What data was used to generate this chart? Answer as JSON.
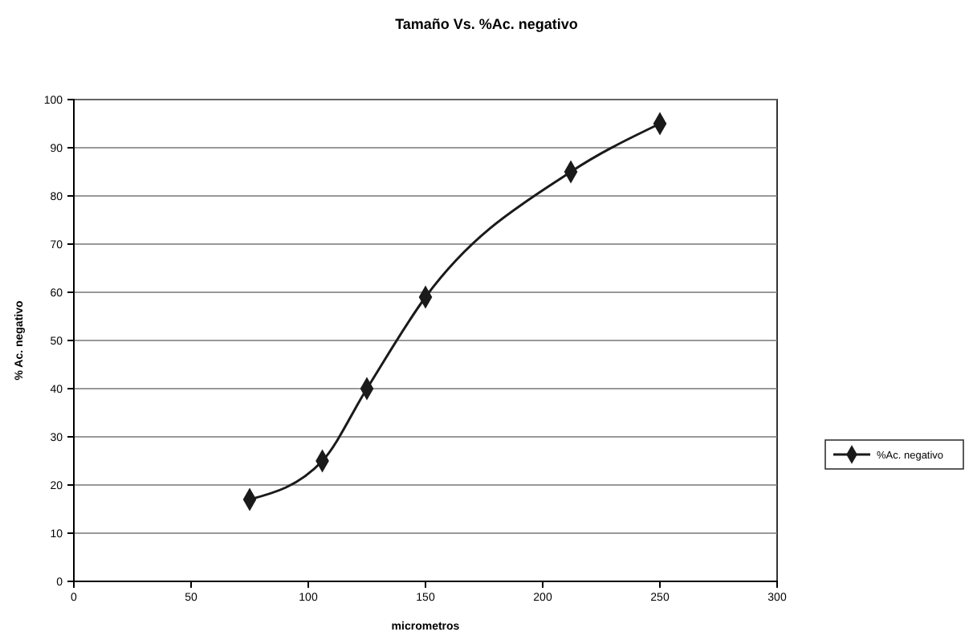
{
  "chart_data": {
    "type": "line",
    "title": "Tamaño Vs. %Ac. negativo",
    "xlabel": "micrometros",
    "ylabel": "% Ac. negativo",
    "x": [
      75,
      106,
      125,
      150,
      212,
      250
    ],
    "series": [
      {
        "name": "%Ac. negativo",
        "color": "#1a1a1a",
        "values": [
          17,
          25,
          40,
          59,
          85,
          95
        ]
      }
    ],
    "xlim": [
      0,
      300
    ],
    "xticks": [
      0,
      50,
      100,
      150,
      200,
      250,
      300
    ],
    "ylim": [
      0,
      100
    ],
    "yticks": [
      0,
      10,
      20,
      30,
      40,
      50,
      60,
      70,
      80,
      90,
      100
    ],
    "grid": "y",
    "legend": "right",
    "marker": "diamond",
    "line_style": "solid"
  }
}
